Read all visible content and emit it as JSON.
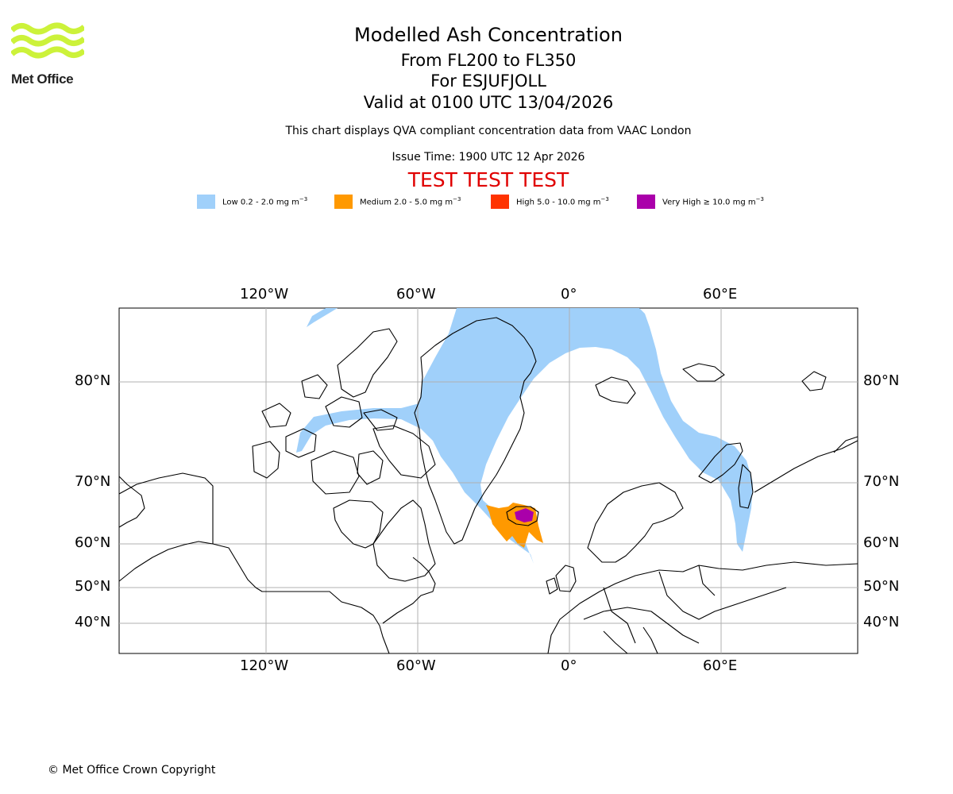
{
  "logo": {
    "text": "Met Office"
  },
  "title": {
    "main": "Modelled Ash Concentration",
    "levels": "From FL200 to FL350",
    "volcano": "For ESJUFJOLL",
    "valid": "Valid at 0100 UTC 13/04/2026"
  },
  "subtitle": {
    "compliance": "This chart displays QVA compliant concentration data from VAAC London",
    "issue_time": "Issue Time: 1900 UTC 12 Apr 2026"
  },
  "test_banner": "TEST TEST TEST",
  "legend": [
    {
      "label_prefix": "Low 0.2 - 2.0 mg m",
      "exp": "−3",
      "color": "#a0d0fa"
    },
    {
      "label_prefix": "Medium 2.0 - 5.0 mg m",
      "exp": "−3",
      "color": "#ff9900"
    },
    {
      "label_prefix": "High 5.0 - 10.0 mg m",
      "exp": "−3",
      "color": "#ff3300"
    },
    {
      "label_prefix": "Very High  ≥  10.0 mg m",
      "exp": "−3",
      "color": "#aa00aa"
    }
  ],
  "map": {
    "lon_labels": [
      "120°W",
      "60°W",
      "0°",
      "60°E"
    ],
    "lat_labels": [
      "80°N",
      "70°N",
      "60°N",
      "50°N",
      "40°N"
    ],
    "gridlines": true,
    "colors": {
      "coastline": "#000000",
      "grid": "#b0b0b0",
      "low_ash": "#a0d0fa",
      "medium_ash": "#ff9900",
      "very_high_ash": "#aa00aa"
    }
  },
  "footer": {
    "copyright": "© Met Office Crown Copyright"
  }
}
